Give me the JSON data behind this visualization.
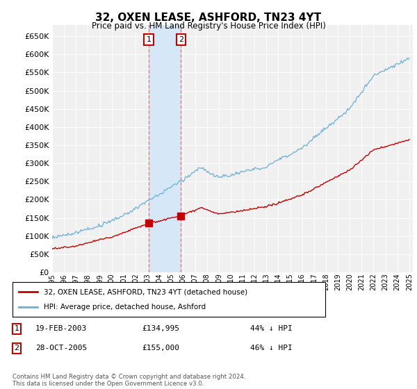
{
  "title": "32, OXEN LEASE, ASHFORD, TN23 4YT",
  "subtitle": "Price paid vs. HM Land Registry's House Price Index (HPI)",
  "ylim": [
    0,
    680000
  ],
  "ytick_values": [
    0,
    50000,
    100000,
    150000,
    200000,
    250000,
    300000,
    350000,
    400000,
    450000,
    500000,
    550000,
    600000,
    650000
  ],
  "hpi_color": "#6baed6",
  "price_color": "#c00000",
  "vline_color": "#e88080",
  "transaction1_year": 2003.12,
  "transaction1_value": 134995,
  "transaction2_year": 2005.82,
  "transaction2_value": 155000,
  "shade_color": "#d6e8f7",
  "legend_label_price": "32, OXEN LEASE, ASHFORD, TN23 4YT (detached house)",
  "legend_label_hpi": "HPI: Average price, detached house, Ashford",
  "transaction1_date": "19-FEB-2003",
  "transaction1_price": "£134,995",
  "transaction1_pct": "44% ↓ HPI",
  "transaction2_date": "28-OCT-2005",
  "transaction2_price": "£155,000",
  "transaction2_pct": "46% ↓ HPI",
  "footer": "Contains HM Land Registry data © Crown copyright and database right 2024.\nThis data is licensed under the Open Government Licence v3.0.",
  "background_color": "#ffffff",
  "plot_bg_color": "#f0f0f0"
}
